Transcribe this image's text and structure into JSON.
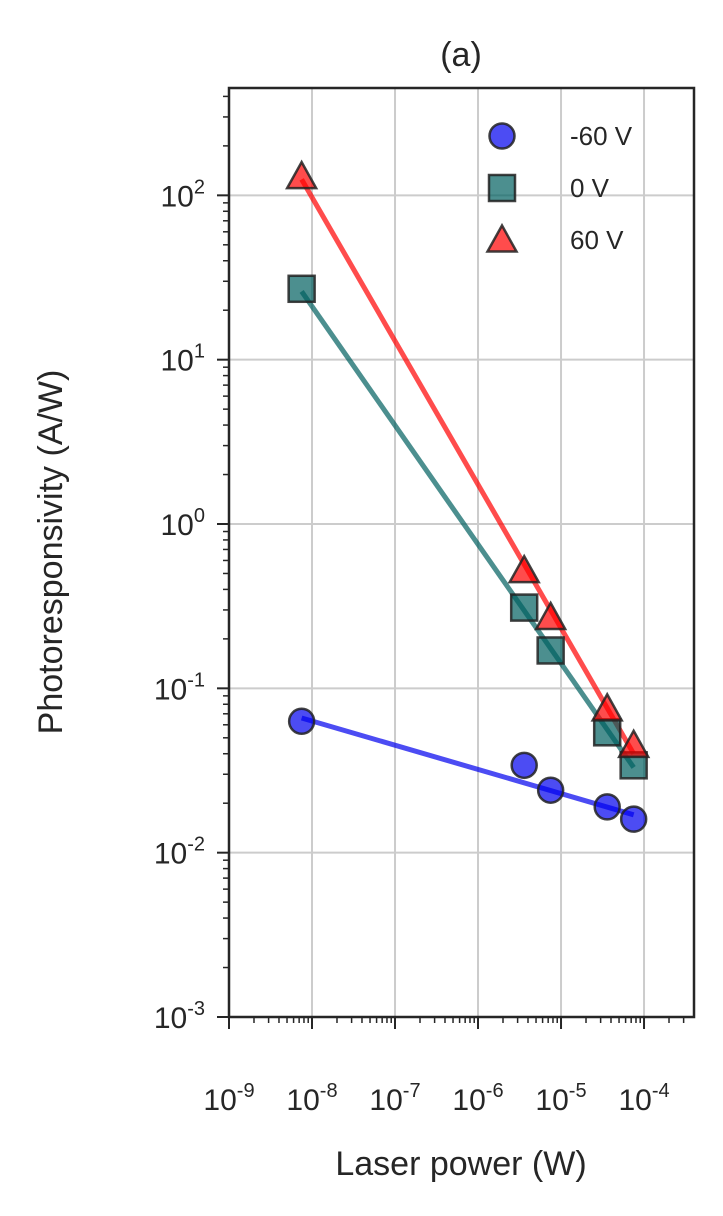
{
  "chart_data": {
    "type": "scatter",
    "title": "(a)",
    "xlabel": "Laser power (W)",
    "ylabel": "Photoresponsivity (A/W)",
    "xscale": "log",
    "yscale": "log",
    "xlim": [
      1e-09,
      0.0004
    ],
    "ylim": [
      0.001,
      450
    ],
    "grid": true,
    "legend_position": "top-right",
    "x_ticks": [
      {
        "base": "10",
        "exp": "-9"
      },
      {
        "base": "10",
        "exp": "-8"
      },
      {
        "base": "10",
        "exp": "-7"
      },
      {
        "base": "10",
        "exp": "-6"
      },
      {
        "base": "10",
        "exp": "-5"
      },
      {
        "base": "10",
        "exp": "-4"
      }
    ],
    "y_ticks": [
      {
        "base": "10",
        "exp": "-3"
      },
      {
        "base": "10",
        "exp": "-2"
      },
      {
        "base": "10",
        "exp": "-1"
      },
      {
        "base": "10",
        "exp": "0"
      },
      {
        "base": "10",
        "exp": "1"
      },
      {
        "base": "10",
        "exp": "2"
      }
    ],
    "series": [
      {
        "name": "-60 V",
        "marker": "circle",
        "color": "#0000ee",
        "points": [
          {
            "x": 7.5e-09,
            "y": 0.063
          },
          {
            "x": 3.6e-06,
            "y": 0.034
          },
          {
            "x": 7.5e-06,
            "y": 0.024
          },
          {
            "x": 3.6e-05,
            "y": 0.019
          },
          {
            "x": 7.5e-05,
            "y": 0.016
          }
        ],
        "fit": [
          {
            "x": 7.5e-09,
            "y": 0.066
          },
          {
            "x": 7.5e-05,
            "y": 0.017
          }
        ]
      },
      {
        "name": "0 V",
        "marker": "square",
        "color": "#006060",
        "points": [
          {
            "x": 7.5e-09,
            "y": 27
          },
          {
            "x": 3.6e-06,
            "y": 0.31
          },
          {
            "x": 7.5e-06,
            "y": 0.17
          },
          {
            "x": 3.6e-05,
            "y": 0.054
          },
          {
            "x": 7.5e-05,
            "y": 0.034
          }
        ],
        "fit": [
          {
            "x": 7.5e-09,
            "y": 26
          },
          {
            "x": 7.5e-05,
            "y": 0.033
          }
        ]
      },
      {
        "name": "60 V",
        "marker": "triangle",
        "color": "#ff0000",
        "points": [
          {
            "x": 7.5e-09,
            "y": 130
          },
          {
            "x": 3.6e-06,
            "y": 0.52
          },
          {
            "x": 7.5e-06,
            "y": 0.27
          },
          {
            "x": 3.6e-05,
            "y": 0.075
          },
          {
            "x": 7.5e-05,
            "y": 0.045
          }
        ],
        "fit": [
          {
            "x": 7.5e-09,
            "y": 125
          },
          {
            "x": 7.5e-05,
            "y": 0.04
          }
        ]
      }
    ]
  }
}
